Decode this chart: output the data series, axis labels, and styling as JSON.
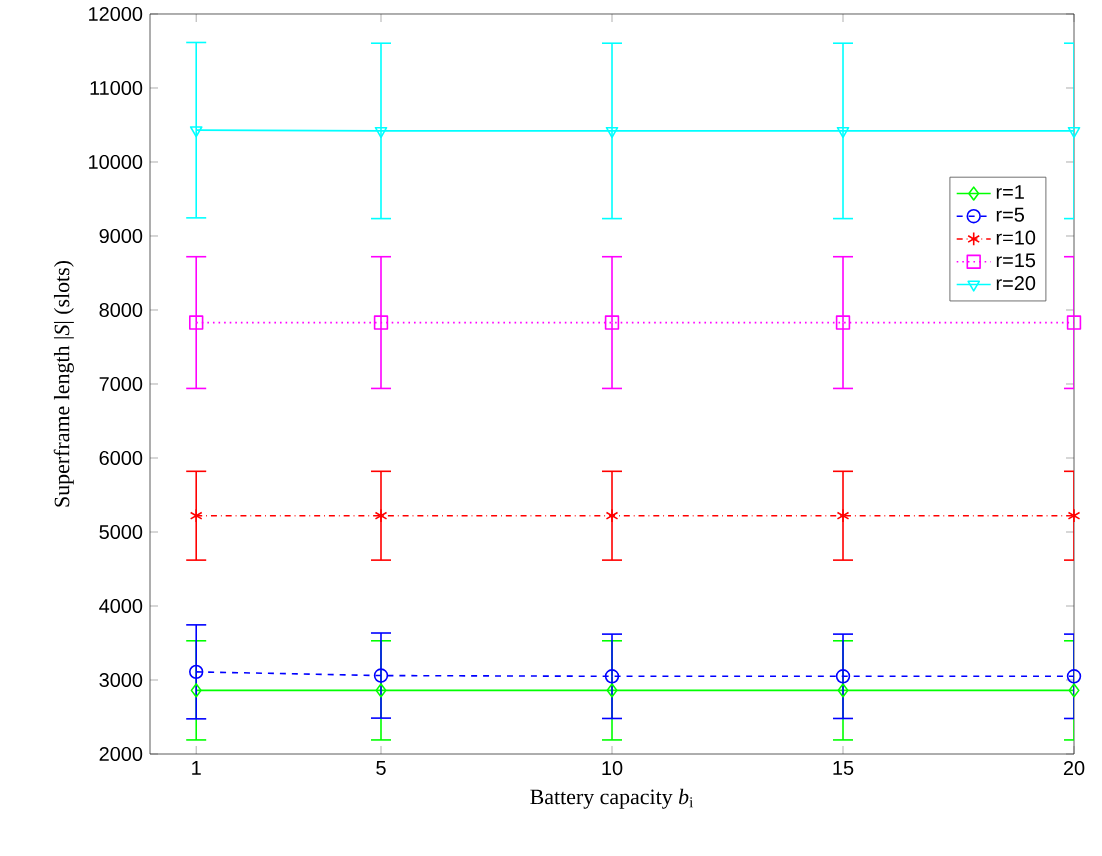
{
  "chart_data": {
    "type": "line",
    "xlabel": "Battery capacity *b*$_{i}$",
    "ylabel": "Superframe length |*S*| (slots)",
    "x": [
      1,
      5,
      10,
      15,
      20
    ],
    "xlim": [
      0,
      20
    ],
    "xticks": [
      1,
      5,
      10,
      15,
      20
    ],
    "ylim": [
      2000,
      12000
    ],
    "yticks": [
      2000,
      3000,
      4000,
      5000,
      6000,
      7000,
      8000,
      9000,
      10000,
      11000,
      12000
    ],
    "legend": "top right",
    "grid": false,
    "series": [
      {
        "name": "r=1",
        "color": "#00ff00",
        "marker": "diamond",
        "line_style": "solid",
        "values": [
          2860,
          2860,
          2860,
          2860,
          2860
        ],
        "errors": [
          670,
          670,
          670,
          670,
          670
        ]
      },
      {
        "name": "r=5",
        "color": "#0000ff",
        "marker": "circle",
        "line_style": "dashed",
        "values": [
          3110,
          3060,
          3050,
          3050,
          3050
        ],
        "errors": [
          635,
          575,
          570,
          570,
          570
        ]
      },
      {
        "name": "r=10",
        "color": "#ff0000",
        "marker": "cross",
        "line_style": "dashdot",
        "values": [
          5220,
          5220,
          5220,
          5220,
          5220
        ],
        "errors": [
          600,
          600,
          600,
          600,
          600
        ]
      },
      {
        "name": "r=15",
        "color": "#ff00ff",
        "marker": "square",
        "line_style": "dotted",
        "values": [
          7830,
          7830,
          7830,
          7830,
          7830
        ],
        "errors": [
          890,
          890,
          890,
          890,
          890
        ]
      },
      {
        "name": "r=20",
        "color": "#00ffff",
        "marker": "triangle",
        "line_style": "solid",
        "values": [
          10430,
          10420,
          10420,
          10420,
          10420
        ],
        "errors": [
          1185,
          1185,
          1185,
          1185,
          1185
        ]
      }
    ]
  }
}
